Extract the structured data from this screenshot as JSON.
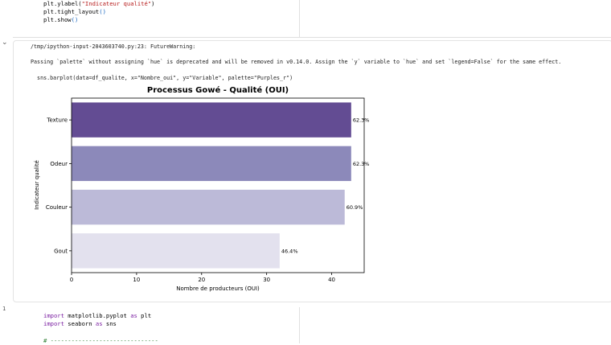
{
  "cell_top": {
    "code_lines": [
      {
        "pre": "plt.ylabel(",
        "str": "\"Indicateur qualité\"",
        "post": ")"
      },
      {
        "pre": "plt.tight_layout",
        "str": "",
        "post": "()"
      },
      {
        "pre": "plt.show",
        "str": "",
        "post": "()"
      }
    ]
  },
  "output": {
    "warning_path": "/tmp/ipython-input-2043603740.py:23: FutureWarning:",
    "warning_message": "Passing `palette` without assigning `hue` is deprecated and will be removed in v0.14.0. Assign the `y` variable to `hue` and set `legend=False` for the same effect.",
    "warning_code": "  sns.barplot(data=df_qualite, x=\"Nombre_oui\", y=\"Variable\", palette=\"Purples_r\")"
  },
  "cell2": {
    "number": "1",
    "line1_kw": "import",
    "line1_rest": " matplotlib.pyplot ",
    "line1_kw2": "as",
    "line1_alias": " plt",
    "line2_kw": "import",
    "line2_rest": " seaborn ",
    "line2_kw2": "as",
    "line2_alias": " sns",
    "line3_comment": "# -------------------------------"
  },
  "chart_data": {
    "type": "bar",
    "orientation": "horizontal",
    "title": "Processus Gowé - Qualité (OUI)",
    "xlabel": "Nombre de producteurs (OUI)",
    "ylabel": "Indicateur qualité",
    "categories": [
      "Texture",
      "Odeur",
      "Couleur",
      "Gout"
    ],
    "values": [
      43,
      43,
      42,
      32
    ],
    "data_labels": [
      "62.3%",
      "62.3%",
      "60.9%",
      "46.4%"
    ],
    "colors": [
      "#634c93",
      "#8c89ba",
      "#bcbad8",
      "#e3e1ee"
    ],
    "xlim": [
      0,
      45
    ],
    "xticks": [
      0,
      10,
      20,
      30,
      40
    ],
    "grid": false
  }
}
